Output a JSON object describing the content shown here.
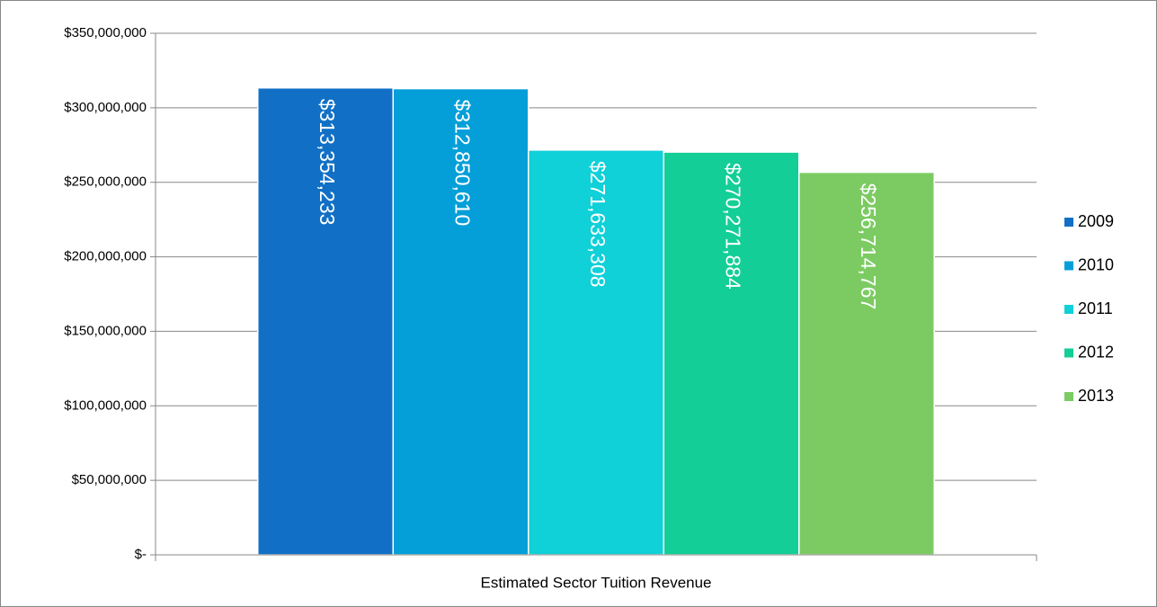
{
  "chart_data": {
    "type": "bar",
    "categories": [
      "Estimated Sector Tuition Revenue"
    ],
    "series": [
      {
        "name": "2009",
        "color": "#1170c6",
        "values": [
          313354233
        ],
        "value_labels": [
          "$313,354,233"
        ]
      },
      {
        "name": "2010",
        "color": "#049fd9",
        "values": [
          312850610
        ],
        "value_labels": [
          "$312,850,610"
        ]
      },
      {
        "name": "2011",
        "color": "#10d0d8",
        "values": [
          271633308
        ],
        "value_labels": [
          "$271,633,308"
        ]
      },
      {
        "name": "2012",
        "color": "#13ce96",
        "values": [
          270271884
        ],
        "value_labels": [
          "$270,271,884"
        ]
      },
      {
        "name": "2013",
        "color": "#7ccb62",
        "values": [
          256714767
        ],
        "value_labels": [
          "$256,714,767"
        ]
      }
    ],
    "ylim": [
      0,
      350000000
    ],
    "yticks": [
      {
        "value": 0,
        "label": "$-"
      },
      {
        "value": 50000000,
        "label": "$50,000,000"
      },
      {
        "value": 100000000,
        "label": "$100,000,000"
      },
      {
        "value": 150000000,
        "label": "$150,000,000"
      },
      {
        "value": 200000000,
        "label": "$200,000,000"
      },
      {
        "value": 250000000,
        "label": "$250,000,000"
      },
      {
        "value": 300000000,
        "label": "$300,000,000"
      },
      {
        "value": 350000000,
        "label": "$350,000,000"
      }
    ],
    "grid": true,
    "legend": "right"
  }
}
